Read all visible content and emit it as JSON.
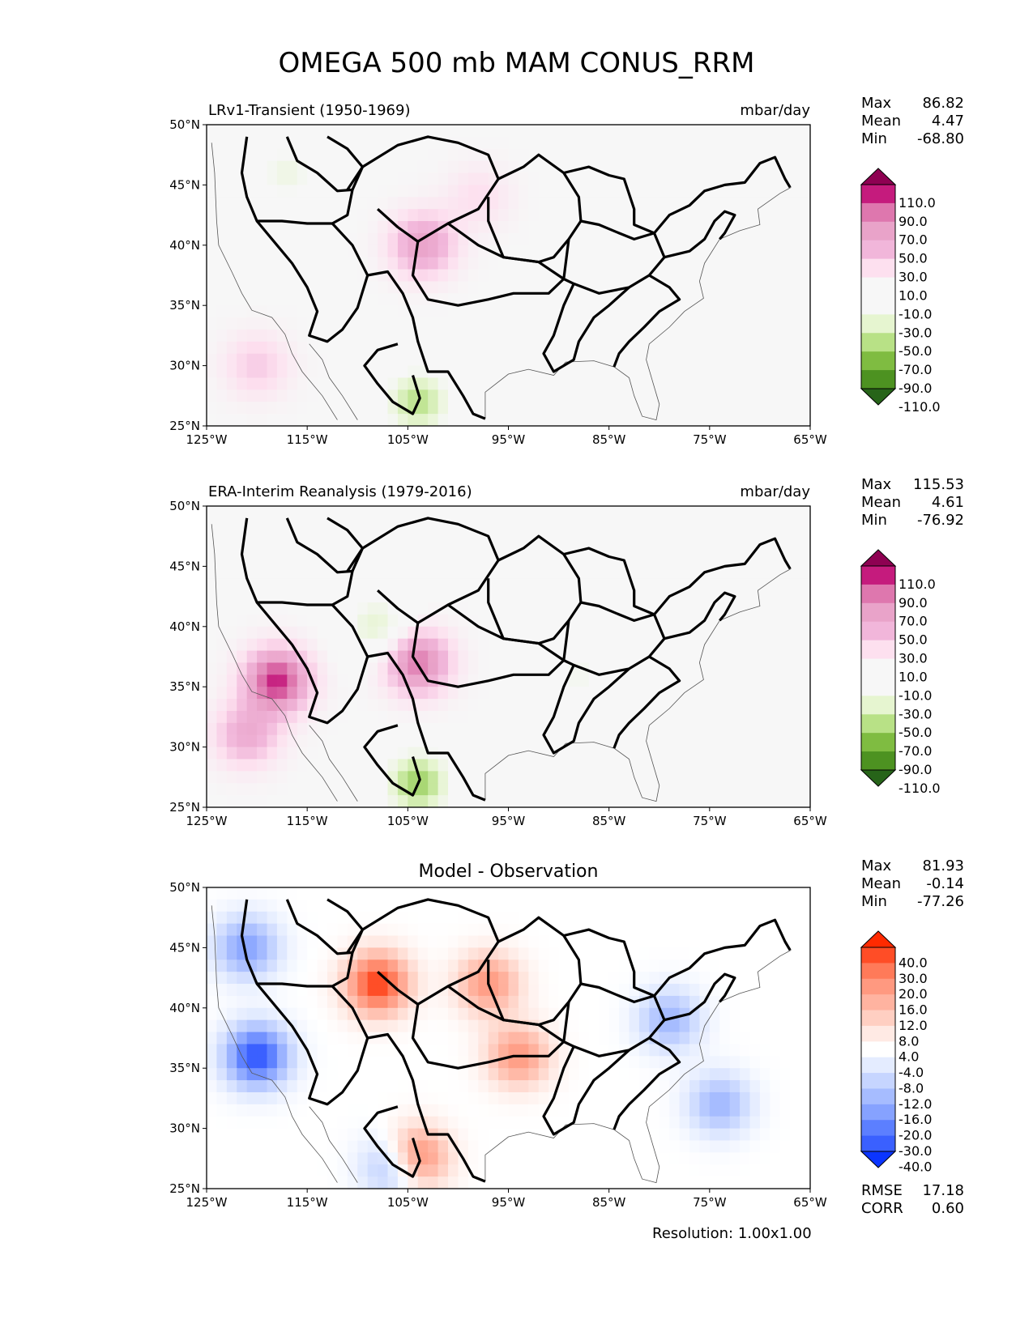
{
  "figure": {
    "title": "OMEGA 500 mb MAM CONUS_RRM",
    "resolution": "Resolution: 1.00x1.00"
  },
  "axes": {
    "x_ticks": [
      "125°W",
      "115°W",
      "105°W",
      "95°W",
      "85°W",
      "75°W",
      "65°W"
    ],
    "y_ticks": [
      "50°N",
      "45°N",
      "40°N",
      "35°N",
      "30°N",
      "25°N"
    ]
  },
  "panels": [
    {
      "title_left": "LRv1-Transient (1950-1969)",
      "title_center": "",
      "units": "mbar/day",
      "stats": [
        {
          "label": "Max",
          "value": "86.82"
        },
        {
          "label": "Mean",
          "value": "4.47"
        },
        {
          "label": "Min",
          "value": "-68.80"
        }
      ],
      "colorbar": {
        "levels": [
          "110.0",
          "90.0",
          "70.0",
          "50.0",
          "30.0",
          "10.0",
          "-10.0",
          "-30.0",
          "-50.0",
          "-70.0",
          "-90.0",
          "-110.0"
        ],
        "colors": [
          "#8e0152",
          "#c51b7d",
          "#de77ae",
          "#e9a3c9",
          "#f1b6da",
          "#fde0ef",
          "#f7f7f7",
          "#f7f7f7",
          "#e6f5d0",
          "#b8e186",
          "#7fbc41",
          "#4d9221",
          "#276419"
        ],
        "top_color": "#8e0152",
        "bottom_color": "#276419"
      },
      "footer_stats": []
    },
    {
      "title_left": "ERA-Interim Reanalysis (1979-2016)",
      "title_center": "",
      "units": "mbar/day",
      "stats": [
        {
          "label": "Max",
          "value": "115.53"
        },
        {
          "label": "Mean",
          "value": "4.61"
        },
        {
          "label": "Min",
          "value": "-76.92"
        }
      ],
      "colorbar": {
        "levels": [
          "110.0",
          "90.0",
          "70.0",
          "50.0",
          "30.0",
          "10.0",
          "-10.0",
          "-30.0",
          "-50.0",
          "-70.0",
          "-90.0",
          "-110.0"
        ],
        "colors": [
          "#8e0152",
          "#c51b7d",
          "#de77ae",
          "#e9a3c9",
          "#f1b6da",
          "#fde0ef",
          "#f7f7f7",
          "#f7f7f7",
          "#e6f5d0",
          "#b8e186",
          "#7fbc41",
          "#4d9221",
          "#276419"
        ],
        "top_color": "#8e0152",
        "bottom_color": "#276419"
      },
      "footer_stats": []
    },
    {
      "title_left": "",
      "title_center": "Model - Observation",
      "units": "",
      "stats": [
        {
          "label": "Max",
          "value": "81.93"
        },
        {
          "label": "Mean",
          "value": "-0.14"
        },
        {
          "label": "Min",
          "value": "-77.26"
        }
      ],
      "colorbar": {
        "levels": [
          "40.0",
          "30.0",
          "20.0",
          "16.0",
          "12.0",
          "8.0",
          "4.0",
          "-4.0",
          "-8.0",
          "-12.0",
          "-16.0",
          "-20.0",
          "-30.0",
          "-40.0"
        ],
        "colors": [
          "#ff2a00",
          "#ff4d26",
          "#ff7a59",
          "#ff9980",
          "#ffb3a0",
          "#ffcfc2",
          "#ffeae4",
          "#ffffff",
          "#e4ecff",
          "#c6d5ff",
          "#a6bcff",
          "#86a2ff",
          "#5c7fff",
          "#3a60ff",
          "#0b35ff"
        ],
        "top_color": "#ff2a00",
        "bottom_color": "#0b35ff"
      },
      "footer_stats": [
        {
          "label": "RMSE",
          "value": "17.18"
        },
        {
          "label": "CORR",
          "value": "0.60"
        }
      ]
    }
  ],
  "chart_data": [
    {
      "type": "heatmap",
      "title": "LRv1-Transient (1950-1969)",
      "units": "mbar/day",
      "xlim": [
        -125,
        -65
      ],
      "ylim": [
        25,
        50
      ],
      "xlabel": "",
      "ylabel": "",
      "stats": {
        "max": 86.82,
        "mean": 4.47,
        "min": -68.8
      },
      "levels": [
        -110,
        -90,
        -70,
        -50,
        -30,
        -10,
        10,
        30,
        50,
        70,
        90,
        110
      ],
      "features": [
        {
          "name": "eastern-pacific-subsidence",
          "lon": -120,
          "lat": 30,
          "value": 30
        },
        {
          "name": "rockies-ascent",
          "lon": -103.5,
          "lat": 40,
          "value": 60
        },
        {
          "name": "northern-plains-descent",
          "lon": -98,
          "lat": 44,
          "value": 20
        },
        {
          "name": "pacific-northwest-ascent",
          "lon": -117,
          "lat": 46,
          "value": -30
        },
        {
          "name": "sierra-madre-ascent",
          "lon": -104,
          "lat": 27,
          "value": -60
        },
        {
          "name": "atlantic-ascent",
          "lon": -70,
          "lat": 33,
          "value": -20
        }
      ]
    },
    {
      "type": "heatmap",
      "title": "ERA-Interim Reanalysis (1979-2016)",
      "units": "mbar/day",
      "xlim": [
        -125,
        -65
      ],
      "ylim": [
        25,
        50
      ],
      "xlabel": "",
      "ylabel": "",
      "stats": {
        "max": 115.53,
        "mean": 4.61,
        "min": -76.92
      },
      "levels": [
        -110,
        -90,
        -70,
        -50,
        -30,
        -10,
        10,
        30,
        50,
        70,
        90,
        110
      ],
      "features": [
        {
          "name": "southern-california-subsidence",
          "lon": -118,
          "lat": 35.5,
          "value": 100
        },
        {
          "name": "eastern-pacific-subsidence",
          "lon": -121,
          "lat": 31,
          "value": 50
        },
        {
          "name": "colorado-front-descent",
          "lon": -104,
          "lat": 37,
          "value": 80
        },
        {
          "name": "rockies-ascent",
          "lon": -108,
          "lat": 40,
          "value": -40
        },
        {
          "name": "sierra-madre-ascent",
          "lon": -104,
          "lat": 27,
          "value": -70
        },
        {
          "name": "mississippi-ascent",
          "lon": -88,
          "lat": 36,
          "value": -25
        }
      ]
    },
    {
      "type": "heatmap",
      "title": "Model - Observation",
      "units": "mbar/day",
      "xlim": [
        -125,
        -65
      ],
      "ylim": [
        25,
        50
      ],
      "xlabel": "",
      "ylabel": "",
      "stats": {
        "max": 81.93,
        "mean": -0.14,
        "min": -77.26,
        "rmse": 17.18,
        "corr": 0.6
      },
      "levels": [
        -40,
        -30,
        -20,
        -16,
        -12,
        -8,
        -4,
        4,
        8,
        12,
        16,
        20,
        30,
        40
      ],
      "features": [
        {
          "name": "northern-rockies-positive",
          "lon": -108,
          "lat": 42,
          "value": 40
        },
        {
          "name": "plains-positive",
          "lon": -97,
          "lat": 42,
          "value": 25
        },
        {
          "name": "gulf-positive",
          "lon": -94,
          "lat": 36,
          "value": 25
        },
        {
          "name": "mexico-positive",
          "lon": -104.5,
          "lat": 27.5,
          "value": 45
        },
        {
          "name": "california-negative",
          "lon": -120,
          "lat": 36,
          "value": -40
        },
        {
          "name": "pacific-northwest-negative",
          "lon": -121,
          "lat": 45,
          "value": -25
        },
        {
          "name": "sierra-madre-negative",
          "lon": -106,
          "lat": 27,
          "value": -35
        },
        {
          "name": "atlantic-negative",
          "lon": -74,
          "lat": 32,
          "value": -20
        },
        {
          "name": "appalachian-negative",
          "lon": -79,
          "lat": 39,
          "value": -20
        }
      ]
    }
  ]
}
